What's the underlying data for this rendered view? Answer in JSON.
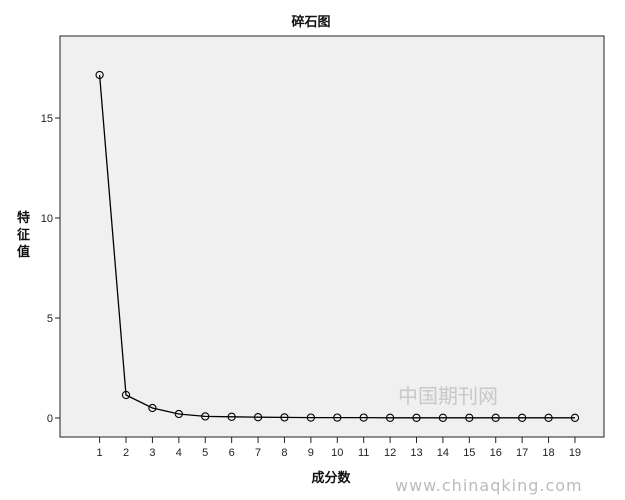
{
  "chart_data": {
    "type": "line",
    "title": "碎石图",
    "xlabel": "成分数",
    "ylabel": "特征值",
    "x": [
      1,
      2,
      3,
      4,
      5,
      6,
      7,
      8,
      9,
      10,
      11,
      12,
      13,
      14,
      15,
      16,
      17,
      18,
      19
    ],
    "values": [
      17.15,
      1.15,
      0.5,
      0.2,
      0.08,
      0.06,
      0.04,
      0.03,
      0.02,
      0.02,
      0.02,
      0.01,
      0.01,
      0.01,
      0.01,
      0.01,
      0.01,
      0.01,
      0.01
    ],
    "yticks": [
      0,
      5,
      10,
      15
    ],
    "ylim": [
      -0.95,
      19.1
    ],
    "xlim": [
      -0.5,
      20.1
    ],
    "grid": false,
    "marker": "open-circle",
    "plot_background": "#f0f0f0",
    "line_color": "#000000"
  },
  "watermark": {
    "cn": "中国期刊网",
    "url": "www.chinaqking.com"
  }
}
